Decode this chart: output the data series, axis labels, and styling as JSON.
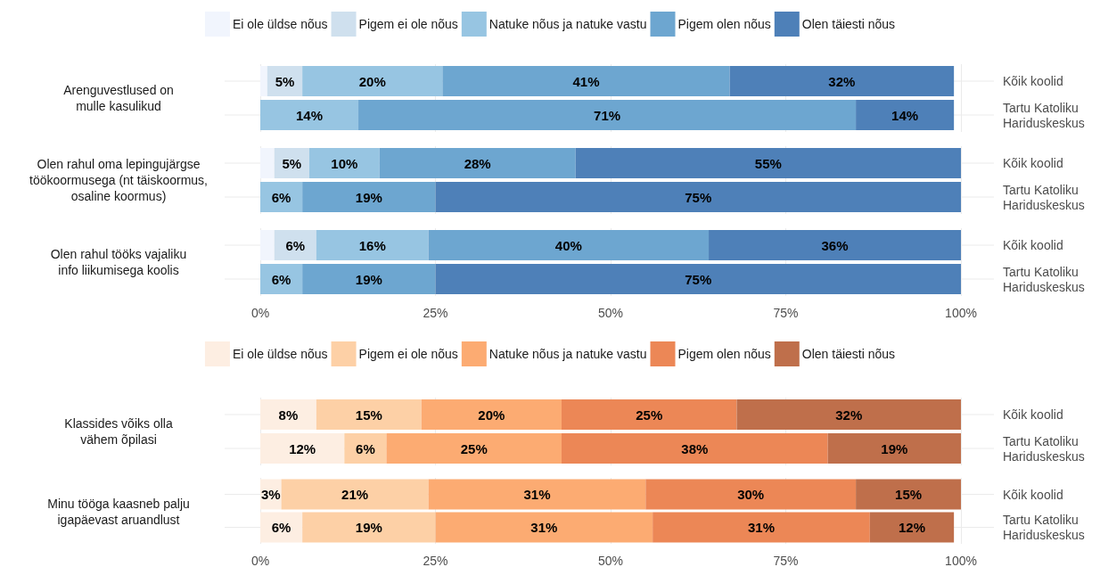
{
  "chart_data": [
    {
      "type": "bar",
      "orientation": "horizontal",
      "stacked": true,
      "ylabel": "Arenguvestlused on\nmulle kasulikud",
      "categories": [
        "Kõik koolid",
        "Tartu Katoliku\nHariduskeskus"
      ],
      "xlim": [
        0,
        100
      ],
      "xticks": [
        0,
        25,
        50,
        75,
        100
      ],
      "grid": true,
      "legend": "top",
      "tick_labels": "y",
      "series": [
        {
          "name": "Ei ole üldse nõus",
          "color": "#f1f5fd",
          "values": [
            1,
            null
          ],
          "value_labels": [
            null,
            null
          ]
        },
        {
          "name": "Pigem ei ole nõus",
          "color": "#cfe0ee",
          "values": [
            5,
            null
          ],
          "value_labels": [
            "5%",
            null
          ]
        },
        {
          "name": "Natuke nõus ja natuke vastu",
          "color": "#97c5e2",
          "values": [
            20,
            14
          ],
          "value_labels": [
            "20%",
            "14%"
          ]
        },
        {
          "name": "Pigem olen nõus",
          "color": "#6da6d0",
          "values": [
            41,
            71
          ],
          "value_labels": [
            "41%",
            "71%"
          ]
        },
        {
          "name": "Olen täiesti nõus",
          "color": "#4e80b8",
          "values": [
            32,
            14
          ],
          "value_labels": [
            "32%",
            "14%"
          ]
        }
      ]
    },
    {
      "type": "bar",
      "orientation": "horizontal",
      "stacked": true,
      "ylabel": "Olen rahul oma lepingujärgse\ntöökoormusega (nt täiskoormus,\nosaline koormus)",
      "categories": [
        "Kõik koolid",
        "Tartu Katoliku\nHariduskeskus"
      ],
      "xlim": [
        0,
        100
      ],
      "xticks": [
        0,
        25,
        50,
        75,
        100
      ],
      "grid": true,
      "tick_labels": "y",
      "series": [
        {
          "color": "#f1f5fd",
          "values": [
            2,
            null
          ],
          "value_labels": [
            null,
            null
          ]
        },
        {
          "color": "#cfe0ee",
          "values": [
            5,
            null
          ],
          "value_labels": [
            "5%",
            null
          ]
        },
        {
          "color": "#97c5e2",
          "values": [
            10,
            6
          ],
          "value_labels": [
            "10%",
            "6%"
          ]
        },
        {
          "color": "#6da6d0",
          "values": [
            28,
            19
          ],
          "value_labels": [
            "28%",
            "19%"
          ]
        },
        {
          "color": "#4e80b8",
          "values": [
            55,
            75
          ],
          "value_labels": [
            "55%",
            "75%"
          ]
        }
      ]
    },
    {
      "type": "bar",
      "orientation": "horizontal",
      "stacked": true,
      "ylabel": "Olen rahul tööks vajaliku\ninfo liikumisega koolis",
      "categories": [
        "Kõik koolid",
        "Tartu Katoliku\nHariduskeskus"
      ],
      "xlim": [
        0,
        100
      ],
      "xticks": [
        {
          "value": 0,
          "label": "0%"
        },
        {
          "value": 25,
          "label": "25%"
        },
        {
          "value": 50,
          "label": "50%"
        },
        {
          "value": 75,
          "label": "75%"
        },
        {
          "value": 100,
          "label": "100%"
        }
      ],
      "grid": true,
      "series": [
        {
          "color": "#f1f5fd",
          "values": [
            2,
            null
          ],
          "value_labels": [
            null,
            null
          ]
        },
        {
          "color": "#cfe0ee",
          "values": [
            6,
            null
          ],
          "value_labels": [
            "6%",
            null
          ]
        },
        {
          "color": "#97c5e2",
          "values": [
            16,
            6
          ],
          "value_labels": [
            "16%",
            "6%"
          ]
        },
        {
          "color": "#6da6d0",
          "values": [
            40,
            19
          ],
          "value_labels": [
            "40%",
            "19%"
          ]
        },
        {
          "color": "#4e80b8",
          "values": [
            36,
            75
          ],
          "value_labels": [
            "36%",
            "75%"
          ]
        }
      ]
    },
    {
      "type": "bar",
      "orientation": "horizontal",
      "stacked": true,
      "ylabel": "Klassides võiks olla\nvähem õpilasi",
      "categories": [
        "Kõik koolid",
        "Tartu Katoliku\nHariduskeskus"
      ],
      "xlim": [
        0,
        100
      ],
      "xticks": [
        0,
        25,
        50,
        75,
        100
      ],
      "grid": true,
      "legend": "top",
      "tick_labels": "y",
      "series": [
        {
          "name": "Ei ole üldse nõus",
          "color": "#fdeee2",
          "values": [
            8,
            12
          ],
          "value_labels": [
            "8%",
            "12%"
          ]
        },
        {
          "name": "Pigem ei ole nõus",
          "color": "#fdd0a6",
          "values": [
            15,
            6
          ],
          "value_labels": [
            "15%",
            "6%"
          ]
        },
        {
          "name": "Natuke nõus ja natuke vastu",
          "color": "#fcab72",
          "values": [
            20,
            25
          ],
          "value_labels": [
            "20%",
            "25%"
          ]
        },
        {
          "name": "Pigem olen nõus",
          "color": "#ec8756",
          "values": [
            25,
            38
          ],
          "value_labels": [
            "25%",
            "38%"
          ]
        },
        {
          "name": "Olen täiesti nõus",
          "color": "#bf6f4b",
          "values": [
            32,
            19
          ],
          "value_labels": [
            "32%",
            "19%"
          ]
        }
      ]
    },
    {
      "type": "bar",
      "orientation": "horizontal",
      "stacked": true,
      "ylabel": "Minu tööga kaasneb palju\nigapäevast aruandlust",
      "categories": [
        "Kõik koolid",
        "Tartu Katoliku\nHariduskeskus"
      ],
      "xlim": [
        0,
        100
      ],
      "xticks": [
        {
          "value": 0,
          "label": "0%"
        },
        {
          "value": 25,
          "label": "25%"
        },
        {
          "value": 50,
          "label": "50%"
        },
        {
          "value": 75,
          "label": "75%"
        },
        {
          "value": 100,
          "label": "100%"
        }
      ],
      "grid": true,
      "series": [
        {
          "color": "#fdeee2",
          "values": [
            3,
            6
          ],
          "value_labels": [
            "3%",
            "6%"
          ]
        },
        {
          "color": "#fdd0a6",
          "values": [
            21,
            19
          ],
          "value_labels": [
            "21%",
            "19%"
          ]
        },
        {
          "color": "#fcab72",
          "values": [
            31,
            31
          ],
          "value_labels": [
            "31%",
            "31%"
          ]
        },
        {
          "color": "#ec8756",
          "values": [
            30,
            31
          ],
          "value_labels": [
            "30%",
            "31%"
          ]
        },
        {
          "color": "#bf6f4b",
          "values": [
            15,
            12
          ],
          "value_labels": [
            "15%",
            "12%"
          ]
        }
      ]
    }
  ]
}
